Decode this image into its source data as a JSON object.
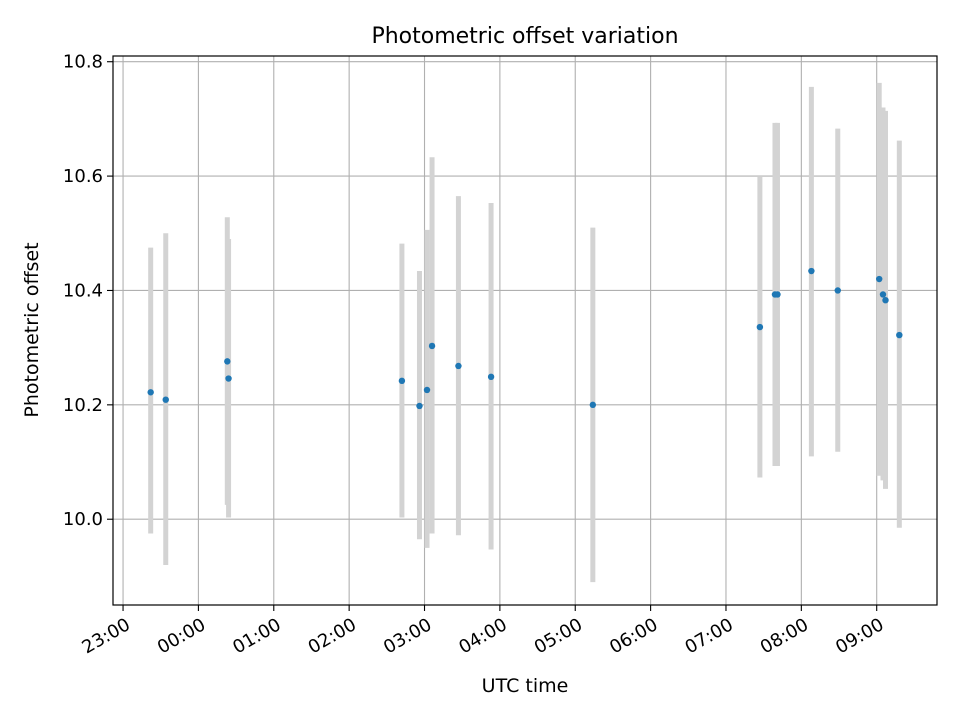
{
  "chart_data": {
    "type": "scatter",
    "title": "Photometric offset variation",
    "xlabel": "UTC time",
    "ylabel": "Photometric offset",
    "xlim": [
      "22:52",
      "09:48"
    ],
    "ylim": [
      9.85,
      10.81
    ],
    "x_ticks": [
      "23:00",
      "00:00",
      "01:00",
      "02:00",
      "03:00",
      "04:00",
      "05:00",
      "06:00",
      "07:00",
      "08:00",
      "09:00"
    ],
    "y_ticks": [
      "10.0",
      "10.2",
      "10.4",
      "10.6",
      "10.8"
    ],
    "grid": true,
    "colors": {
      "point": "#1f77b4",
      "errorbar": "#d3d3d3",
      "grid": "#b0b0b0"
    },
    "points": [
      {
        "x": "23:22",
        "y": 10.222,
        "yerr_low": 9.975,
        "yerr_high": 10.475
      },
      {
        "x": "23:34",
        "y": 10.209,
        "yerr_low": 9.92,
        "yerr_high": 10.5
      },
      {
        "x": "00:23",
        "y": 10.276,
        "yerr_low": 10.025,
        "yerr_high": 10.528
      },
      {
        "x": "00:24",
        "y": 10.246,
        "yerr_low": 10.003,
        "yerr_high": 10.49
      },
      {
        "x": "02:42",
        "y": 10.242,
        "yerr_low": 10.003,
        "yerr_high": 10.482
      },
      {
        "x": "02:56",
        "y": 10.198,
        "yerr_low": 9.965,
        "yerr_high": 10.434
      },
      {
        "x": "03:02",
        "y": 10.226,
        "yerr_low": 9.95,
        "yerr_high": 10.506
      },
      {
        "x": "03:06",
        "y": 10.303,
        "yerr_low": 9.975,
        "yerr_high": 10.633
      },
      {
        "x": "03:27",
        "y": 10.268,
        "yerr_low": 9.972,
        "yerr_high": 10.565
      },
      {
        "x": "03:53",
        "y": 10.249,
        "yerr_low": 9.947,
        "yerr_high": 10.553
      },
      {
        "x": "05:14",
        "y": 10.2,
        "yerr_low": 9.89,
        "yerr_high": 10.51
      },
      {
        "x": "07:27",
        "y": 10.336,
        "yerr_low": 10.073,
        "yerr_high": 10.6
      },
      {
        "x": "07:39",
        "y": 10.393,
        "yerr_low": 10.093,
        "yerr_high": 10.693
      },
      {
        "x": "07:41",
        "y": 10.393,
        "yerr_low": 10.093,
        "yerr_high": 10.693
      },
      {
        "x": "08:08",
        "y": 10.434,
        "yerr_low": 10.11,
        "yerr_high": 10.756
      },
      {
        "x": "08:29",
        "y": 10.4,
        "yerr_low": 10.118,
        "yerr_high": 10.683
      },
      {
        "x": "09:02",
        "y": 10.42,
        "yerr_low": 10.076,
        "yerr_high": 10.763
      },
      {
        "x": "09:05",
        "y": 10.393,
        "yerr_low": 10.068,
        "yerr_high": 10.72
      },
      {
        "x": "09:07",
        "y": 10.383,
        "yerr_low": 10.053,
        "yerr_high": 10.714
      },
      {
        "x": "09:18",
        "y": 10.322,
        "yerr_low": 9.985,
        "yerr_high": 10.662
      }
    ]
  }
}
